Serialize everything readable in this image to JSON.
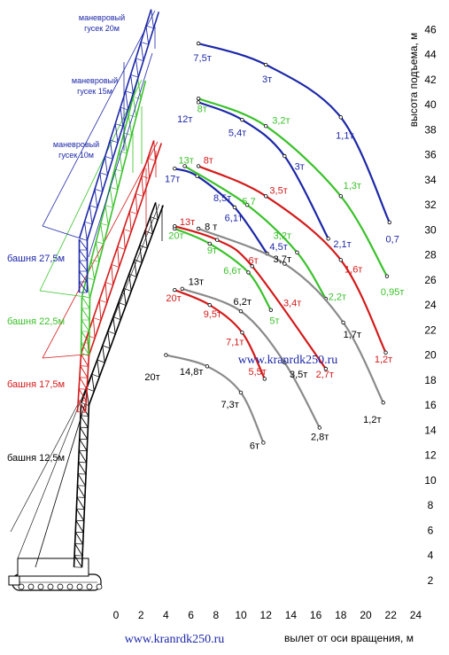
{
  "chart_data": {
    "type": "line",
    "xlabel": "вылет от оси вращения, м",
    "ylabel": "высота подъема, м",
    "xlim": [
      0,
      24
    ],
    "ylim": [
      0,
      47
    ],
    "x_ticks": [
      0,
      2,
      4,
      6,
      8,
      10,
      12,
      14,
      16,
      18,
      20,
      22,
      24
    ],
    "y_ticks": [
      2,
      4,
      6,
      8,
      10,
      12,
      14,
      16,
      18,
      20,
      22,
      24,
      26,
      28,
      30,
      32,
      34,
      36,
      38,
      40,
      42,
      44,
      46
    ],
    "colors": {
      "blue": "#1c27a8",
      "green": "#39c22a",
      "red": "#d41a1a",
      "gray": "#8a8a8a",
      "black": "#000000"
    },
    "curves": [
      {
        "color": "blue",
        "points": [
          [
            6.6,
            44.9
          ],
          [
            12,
            43.2
          ],
          [
            18,
            39.0
          ],
          [
            21.9,
            30.6
          ]
        ]
      },
      {
        "color": "blue",
        "points": [
          [
            6.6,
            40.2
          ],
          [
            10.1,
            38.8
          ],
          [
            13.5,
            35.9
          ],
          [
            17,
            29.3
          ]
        ]
      },
      {
        "color": "blue",
        "points": [
          [
            4.7,
            34.9
          ],
          [
            6.5,
            34.3
          ],
          [
            9.5,
            31.8
          ],
          [
            12.1,
            28.1
          ]
        ]
      },
      {
        "color": "green",
        "points": [
          [
            6.6,
            40.5
          ],
          [
            12,
            38.3
          ],
          [
            18,
            32.7
          ],
          [
            21.7,
            26.3
          ]
        ]
      },
      {
        "color": "green",
        "points": [
          [
            5.5,
            35.1
          ],
          [
            10.5,
            32.0
          ],
          [
            14.5,
            28.2
          ],
          [
            16.8,
            24.5
          ]
        ]
      },
      {
        "color": "green",
        "points": [
          [
            4.7,
            30.1
          ],
          [
            7.5,
            28.9
          ],
          [
            10.6,
            26.6
          ],
          [
            12.4,
            23.6
          ]
        ]
      },
      {
        "color": "red",
        "points": [
          [
            6.6,
            35.1
          ],
          [
            12,
            32.7
          ],
          [
            18,
            27.6
          ],
          [
            21.6,
            20.2
          ]
        ]
      },
      {
        "color": "red",
        "points": [
          [
            4.7,
            30.3
          ],
          [
            8.1,
            29.2
          ],
          [
            10.9,
            27.1
          ],
          [
            16.8,
            18.9
          ]
        ]
      },
      {
        "color": "red",
        "points": [
          [
            4.7,
            25.2
          ],
          [
            7.5,
            24.0
          ],
          [
            10.1,
            21.8
          ],
          [
            11.9,
            18.1
          ]
        ]
      },
      {
        "color": "gray",
        "points": [
          [
            6.6,
            30.1
          ],
          [
            13.5,
            27.3
          ],
          [
            18.2,
            22.6
          ],
          [
            21.4,
            16.2
          ]
        ]
      },
      {
        "color": "gray",
        "points": [
          [
            5.3,
            25.3
          ],
          [
            10,
            23.5
          ],
          [
            13.5,
            19.4
          ],
          [
            16.3,
            14.2
          ]
        ]
      },
      {
        "color": "gray",
        "points": [
          [
            4,
            20.0
          ],
          [
            7.3,
            19.1
          ],
          [
            10,
            17.0
          ],
          [
            11.8,
            13.0
          ]
        ]
      }
    ],
    "point_labels": [
      {
        "text": "7,5т",
        "x": 6.2,
        "y": 43.5,
        "color": "blue"
      },
      {
        "text": "3т",
        "x": 11.7,
        "y": 41.8,
        "color": "blue"
      },
      {
        "text": "1,1т",
        "x": 17.6,
        "y": 37.3,
        "color": "blue"
      },
      {
        "text": "0,7",
        "x": 21.6,
        "y": 29.0,
        "color": "blue"
      },
      {
        "text": "8т",
        "x": 6.5,
        "y": 39.4,
        "color": "green"
      },
      {
        "text": "12т",
        "x": 4.9,
        "y": 38.6,
        "color": "blue"
      },
      {
        "text": "5,4т",
        "x": 9.0,
        "y": 37.5,
        "color": "blue"
      },
      {
        "text": "3,2т",
        "x": 12.5,
        "y": 38.5,
        "color": "green"
      },
      {
        "text": "3т",
        "x": 14.3,
        "y": 34.8,
        "color": "blue"
      },
      {
        "text": "1,3т",
        "x": 18.2,
        "y": 33.3,
        "color": "green"
      },
      {
        "text": "13т",
        "x": 5.0,
        "y": 35.3,
        "color": "green"
      },
      {
        "text": "8т",
        "x": 7.0,
        "y": 35.3,
        "color": "red"
      },
      {
        "text": "17т",
        "x": 3.9,
        "y": 33.8,
        "color": "blue"
      },
      {
        "text": "8,5т",
        "x": 7.8,
        "y": 32.3,
        "color": "blue"
      },
      {
        "text": "5,7",
        "x": 10.1,
        "y": 32.0,
        "color": "green"
      },
      {
        "text": "3,5т",
        "x": 12.3,
        "y": 32.9,
        "color": "red"
      },
      {
        "text": "6,1т",
        "x": 8.7,
        "y": 30.7,
        "color": "blue"
      },
      {
        "text": "13т",
        "x": 5.1,
        "y": 30.4,
        "color": "red"
      },
      {
        "text": "8 т",
        "x": 7.1,
        "y": 30.0,
        "color": "black"
      },
      {
        "text": "3,2т",
        "x": 12.6,
        "y": 29.3,
        "color": "green"
      },
      {
        "text": "4,5т",
        "x": 12.3,
        "y": 28.4,
        "color": "blue"
      },
      {
        "text": "2,1т",
        "x": 17.4,
        "y": 28.6,
        "color": "blue"
      },
      {
        "text": "20т",
        "x": 4.2,
        "y": 29.3,
        "color": "green"
      },
      {
        "text": "9т",
        "x": 7.3,
        "y": 28.1,
        "color": "green"
      },
      {
        "text": "6т",
        "x": 10.6,
        "y": 27.3,
        "color": "red"
      },
      {
        "text": "3,7т",
        "x": 12.6,
        "y": 27.4,
        "color": "black"
      },
      {
        "text": "1,6т",
        "x": 18.3,
        "y": 26.6,
        "color": "red"
      },
      {
        "text": "6,6т",
        "x": 8.6,
        "y": 26.5,
        "color": "green"
      },
      {
        "text": "0,95т",
        "x": 21.2,
        "y": 24.8,
        "color": "green"
      },
      {
        "text": "13т",
        "x": 5.8,
        "y": 25.6,
        "color": "black"
      },
      {
        "text": "2,2т",
        "x": 17.0,
        "y": 24.4,
        "color": "green"
      },
      {
        "text": "20т",
        "x": 4.0,
        "y": 24.3,
        "color": "red"
      },
      {
        "text": "6,2т",
        "x": 9.4,
        "y": 24.0,
        "color": "black"
      },
      {
        "text": "3,4т",
        "x": 13.4,
        "y": 23.9,
        "color": "red"
      },
      {
        "text": "9,5т",
        "x": 7.0,
        "y": 23.0,
        "color": "red"
      },
      {
        "text": "5т",
        "x": 12.3,
        "y": 22.5,
        "color": "green"
      },
      {
        "text": "1,7т",
        "x": 18.2,
        "y": 21.4,
        "color": "black"
      },
      {
        "text": "7,1т",
        "x": 8.8,
        "y": 20.8,
        "color": "red"
      },
      {
        "text": "1,2т",
        "x": 20.7,
        "y": 19.4,
        "color": "red"
      },
      {
        "text": "20т",
        "x": 2.3,
        "y": 18.0,
        "color": "black"
      },
      {
        "text": "14,8т",
        "x": 5.1,
        "y": 18.4,
        "color": "black"
      },
      {
        "text": "5,5т",
        "x": 10.6,
        "y": 18.4,
        "color": "red"
      },
      {
        "text": "3,5т",
        "x": 13.9,
        "y": 18.2,
        "color": "black"
      },
      {
        "text": "2,7т",
        "x": 16.0,
        "y": 18.2,
        "color": "red"
      },
      {
        "text": "7,3т",
        "x": 8.4,
        "y": 15.8,
        "color": "black"
      },
      {
        "text": "1,2т",
        "x": 19.8,
        "y": 14.6,
        "color": "black"
      },
      {
        "text": "2,8т",
        "x": 15.6,
        "y": 13.2,
        "color": "black"
      },
      {
        "text": "6т",
        "x": 10.7,
        "y": 12.5,
        "color": "black"
      }
    ]
  },
  "crane_labels": [
    {
      "text": "маневровый",
      "color": "blue"
    },
    {
      "text": "гусек 20м",
      "color": "blue"
    },
    {
      "text": "маневровый",
      "color": "blue"
    },
    {
      "text": "гусек 15м",
      "color": "blue"
    },
    {
      "text": "маневровый",
      "color": "blue"
    },
    {
      "text": "гусек 10м",
      "color": "blue"
    }
  ],
  "tower_labels": [
    {
      "text": "башня 27,5м",
      "color": "blue"
    },
    {
      "text": "башня 22,5м",
      "color": "green"
    },
    {
      "text": "башня 17,5м",
      "color": "red"
    },
    {
      "text": "башня 12,5м",
      "color": "black"
    }
  ],
  "watermarks": [
    "www.kranrdk250.ru",
    "www.kranrdk250.ru"
  ]
}
